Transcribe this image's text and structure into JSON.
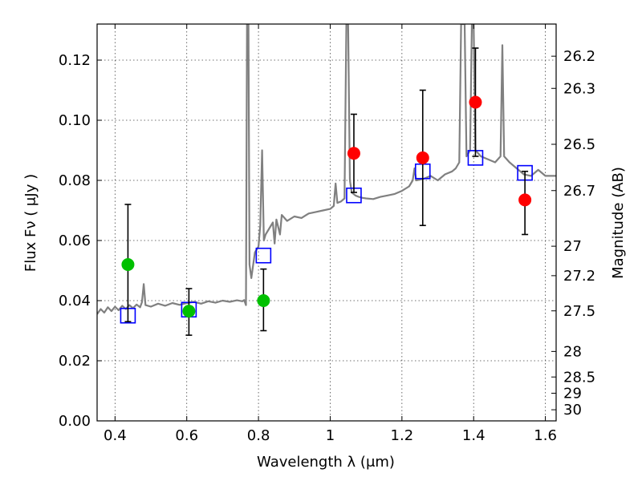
{
  "chart_data": {
    "type": "scatter",
    "xlabel": "Wavelength  λ (μm)",
    "ylabel": "Flux  Fν  ( μJy )",
    "y2label": "Magnitude (AB)",
    "xlim": [
      0.35,
      1.63
    ],
    "ylim": [
      0.0,
      0.132
    ],
    "grid": true,
    "x_ticks": [
      0.4,
      0.6,
      0.8,
      1.0,
      1.2,
      1.4,
      1.6
    ],
    "x_tick_labels": [
      "0.4",
      "0.6",
      "0.8",
      "1",
      "1.2",
      "1.4",
      "1.6"
    ],
    "y_ticks": [
      0.0,
      0.02,
      0.04,
      0.06,
      0.08,
      0.1,
      0.12
    ],
    "y_tick_labels": [
      "0.00",
      "0.02",
      "0.04",
      "0.06",
      "0.08",
      "0.10",
      "0.12"
    ],
    "y2_ticks": [
      {
        "label": "26.2",
        "flux": 0.1213
      },
      {
        "label": "26.3",
        "flux": 0.1106
      },
      {
        "label": "26.5",
        "flux": 0.092
      },
      {
        "label": "26.7",
        "flux": 0.0766
      },
      {
        "label": "27",
        "flux": 0.0581
      },
      {
        "label": "27.2",
        "flux": 0.0483
      },
      {
        "label": "27.5",
        "flux": 0.0366
      },
      {
        "label": "28",
        "flux": 0.0231
      },
      {
        "label": "28.5",
        "flux": 0.0146
      },
      {
        "label": "29",
        "flux": 0.0092
      },
      {
        "label": "30",
        "flux": 0.0037
      }
    ],
    "series": [
      {
        "kind": "line",
        "color": "#808080",
        "points": [
          [
            0.35,
            0.0355
          ],
          [
            0.36,
            0.0372
          ],
          [
            0.37,
            0.036
          ],
          [
            0.38,
            0.0378
          ],
          [
            0.39,
            0.0365
          ],
          [
            0.4,
            0.038
          ],
          [
            0.41,
            0.0368
          ],
          [
            0.42,
            0.0383
          ],
          [
            0.43,
            0.0372
          ],
          [
            0.44,
            0.0385
          ],
          [
            0.45,
            0.0375
          ],
          [
            0.46,
            0.0387
          ],
          [
            0.47,
            0.0378
          ],
          [
            0.475,
            0.0395
          ],
          [
            0.48,
            0.0455
          ],
          [
            0.485,
            0.0385
          ],
          [
            0.5,
            0.038
          ],
          [
            0.52,
            0.039
          ],
          [
            0.54,
            0.0383
          ],
          [
            0.56,
            0.0392
          ],
          [
            0.58,
            0.0386
          ],
          [
            0.6,
            0.0392
          ],
          [
            0.62,
            0.0396
          ],
          [
            0.64,
            0.039
          ],
          [
            0.66,
            0.0398
          ],
          [
            0.68,
            0.0393
          ],
          [
            0.7,
            0.04
          ],
          [
            0.72,
            0.0396
          ],
          [
            0.74,
            0.0401
          ],
          [
            0.755,
            0.0398
          ],
          [
            0.76,
            0.0402
          ],
          [
            0.765,
            0.0385
          ],
          [
            0.768,
            0.132
          ],
          [
            0.772,
            0.132
          ],
          [
            0.775,
            0.052
          ],
          [
            0.78,
            0.0475
          ],
          [
            0.79,
            0.056
          ],
          [
            0.8,
            0.058
          ],
          [
            0.805,
            0.065
          ],
          [
            0.81,
            0.09
          ],
          [
            0.815,
            0.06
          ],
          [
            0.82,
            0.062
          ],
          [
            0.83,
            0.064
          ],
          [
            0.84,
            0.066
          ],
          [
            0.845,
            0.059
          ],
          [
            0.85,
            0.067
          ],
          [
            0.86,
            0.062
          ],
          [
            0.865,
            0.0685
          ],
          [
            0.88,
            0.0665
          ],
          [
            0.9,
            0.068
          ],
          [
            0.92,
            0.0675
          ],
          [
            0.94,
            0.069
          ],
          [
            0.96,
            0.0695
          ],
          [
            0.98,
            0.07
          ],
          [
            1.0,
            0.0705
          ],
          [
            1.01,
            0.0715
          ],
          [
            1.015,
            0.079
          ],
          [
            1.02,
            0.0725
          ],
          [
            1.03,
            0.073
          ],
          [
            1.04,
            0.074
          ],
          [
            1.045,
            0.132
          ],
          [
            1.05,
            0.132
          ],
          [
            1.055,
            0.08
          ],
          [
            1.06,
            0.076
          ],
          [
            1.07,
            0.075
          ],
          [
            1.08,
            0.0745
          ],
          [
            1.09,
            0.0742
          ],
          [
            1.1,
            0.074
          ],
          [
            1.12,
            0.0738
          ],
          [
            1.14,
            0.0745
          ],
          [
            1.16,
            0.075
          ],
          [
            1.18,
            0.0755
          ],
          [
            1.2,
            0.0765
          ],
          [
            1.22,
            0.078
          ],
          [
            1.23,
            0.08
          ],
          [
            1.235,
            0.084
          ],
          [
            1.24,
            0.08
          ],
          [
            1.26,
            0.0805
          ],
          [
            1.28,
            0.0815
          ],
          [
            1.3,
            0.08
          ],
          [
            1.32,
            0.082
          ],
          [
            1.34,
            0.083
          ],
          [
            1.35,
            0.084
          ],
          [
            1.36,
            0.086
          ],
          [
            1.365,
            0.132
          ],
          [
            1.375,
            0.132
          ],
          [
            1.38,
            0.088
          ],
          [
            1.39,
            0.09
          ],
          [
            1.395,
            0.132
          ],
          [
            1.4,
            0.132
          ],
          [
            1.405,
            0.09
          ],
          [
            1.42,
            0.088
          ],
          [
            1.44,
            0.087
          ],
          [
            1.46,
            0.086
          ],
          [
            1.475,
            0.088
          ],
          [
            1.48,
            0.125
          ],
          [
            1.485,
            0.088
          ],
          [
            1.5,
            0.086
          ],
          [
            1.52,
            0.084
          ],
          [
            1.54,
            0.082
          ],
          [
            1.56,
            0.0815
          ],
          [
            1.58,
            0.0835
          ],
          [
            1.6,
            0.0815
          ],
          [
            1.63,
            0.0815
          ]
        ]
      },
      {
        "kind": "square",
        "color": "#0000ff",
        "points": [
          [
            0.436,
            0.035
          ],
          [
            0.606,
            0.037
          ],
          [
            0.814,
            0.055
          ],
          [
            1.066,
            0.075
          ],
          [
            1.258,
            0.083
          ],
          [
            1.405,
            0.0875
          ],
          [
            1.543,
            0.0825
          ]
        ]
      },
      {
        "kind": "circle",
        "color": "#00c000",
        "points": [
          [
            0.436,
            0.052
          ],
          [
            0.606,
            0.0365
          ],
          [
            0.814,
            0.04
          ]
        ]
      },
      {
        "kind": "circle",
        "color": "#ff0000",
        "points": [
          [
            1.066,
            0.089
          ],
          [
            1.258,
            0.0875
          ],
          [
            1.405,
            0.106
          ],
          [
            1.543,
            0.0735
          ]
        ]
      }
    ],
    "error_bars": [
      {
        "x": 0.436,
        "low": 0.033,
        "high": 0.072
      },
      {
        "x": 0.606,
        "low": 0.0285,
        "high": 0.044
      },
      {
        "x": 0.814,
        "low": 0.03,
        "high": 0.0505
      },
      {
        "x": 1.066,
        "low": 0.076,
        "high": 0.102
      },
      {
        "x": 1.258,
        "low": 0.065,
        "high": 0.11
      },
      {
        "x": 1.405,
        "low": 0.088,
        "high": 0.124
      },
      {
        "x": 1.543,
        "low": 0.062,
        "high": 0.083
      }
    ]
  }
}
